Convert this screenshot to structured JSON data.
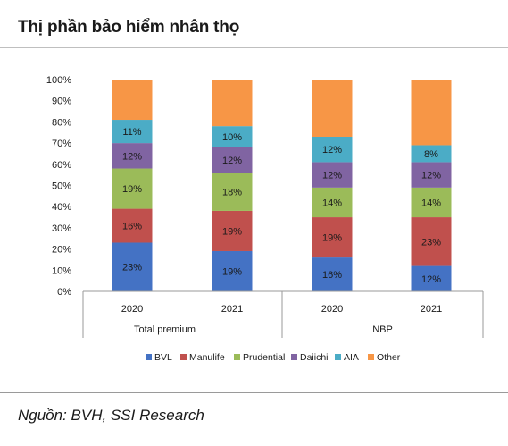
{
  "header": {
    "title": "Thị phần bảo hiểm nhân thọ"
  },
  "footer": {
    "source": "Nguồn: BVH, SSI Research"
  },
  "chart_data": {
    "type": "bar",
    "stacked": true,
    "categories": [
      "2020",
      "2021",
      "2020",
      "2021"
    ],
    "groups": [
      {
        "label": "Total premium",
        "categories": [
          "2020",
          "2021"
        ]
      },
      {
        "label": "NBP",
        "categories": [
          "2020",
          "2021"
        ]
      }
    ],
    "yticks": [
      "0%",
      "10%",
      "20%",
      "30%",
      "40%",
      "50%",
      "60%",
      "70%",
      "80%",
      "90%",
      "100%"
    ],
    "ylim": [
      0,
      100
    ],
    "series": [
      {
        "name": "BVL",
        "color": "#4472c4",
        "values": [
          23,
          19,
          16,
          12
        ],
        "labels": [
          "23%",
          "19%",
          "16%",
          "12%"
        ]
      },
      {
        "name": "Manulife",
        "color": "#c0504d",
        "values": [
          16,
          19,
          19,
          23
        ],
        "labels": [
          "16%",
          "19%",
          "19%",
          "23%"
        ]
      },
      {
        "name": "Prudential",
        "color": "#9bbb59",
        "values": [
          19,
          18,
          14,
          14
        ],
        "labels": [
          "19%",
          "18%",
          "14%",
          "14%"
        ]
      },
      {
        "name": "Daiichi",
        "color": "#8064a2",
        "values": [
          12,
          12,
          12,
          12
        ],
        "labels": [
          "12%",
          "12%",
          "12%",
          "12%"
        ]
      },
      {
        "name": "AIA",
        "color": "#4bacc6",
        "values": [
          11,
          10,
          12,
          8
        ],
        "labels": [
          "11%",
          "10%",
          "12%",
          "8%"
        ]
      },
      {
        "name": "Other",
        "color": "#f79646",
        "values": [
          19,
          22,
          27,
          31
        ],
        "labels": [
          "",
          "",
          "",
          ""
        ]
      }
    ],
    "legend_position": "bottom",
    "grid": false
  }
}
